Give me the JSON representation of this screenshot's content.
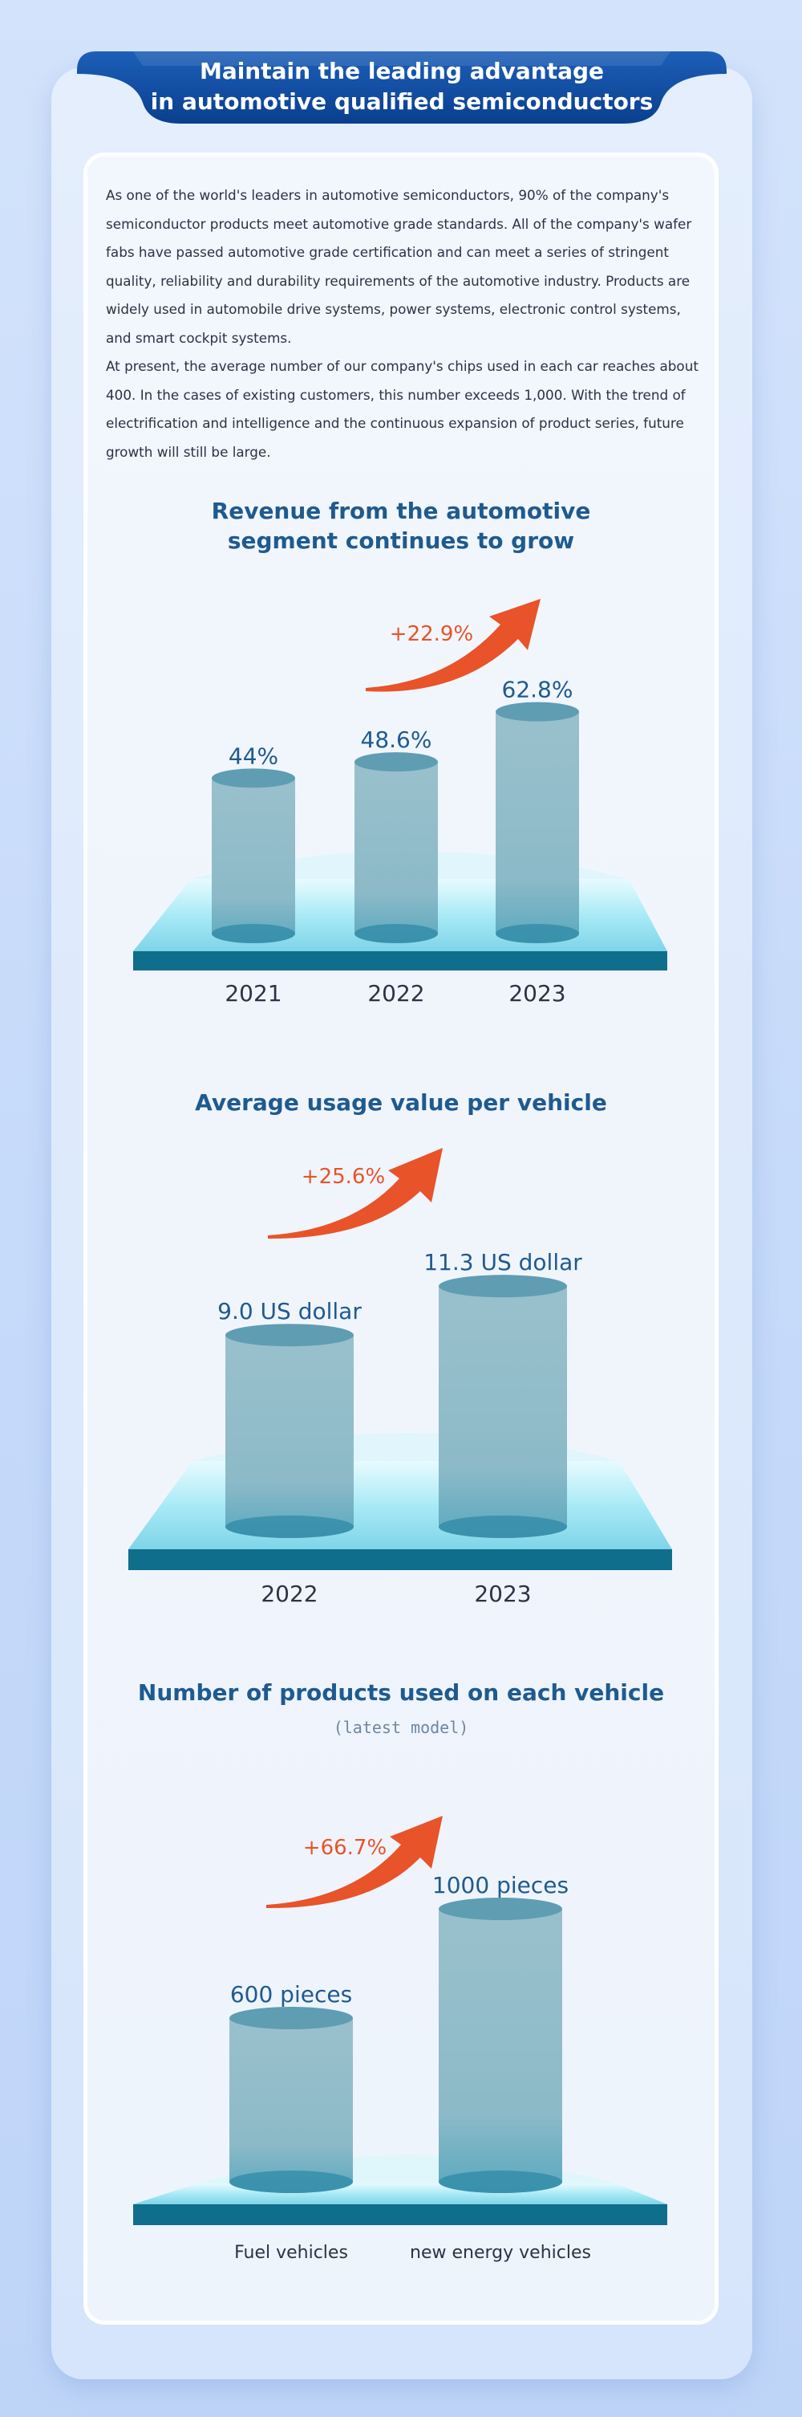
{
  "header": {
    "title_line1": "Maintain the leading advantage",
    "title_line2": "in automotive qualified semiconductors"
  },
  "intro": {
    "paragraph1": "As one of the world's leaders in automotive semiconductors, 90% of the company's semiconductor products meet automotive grade standards. All of the company's wafer fabs have passed automotive grade certification and can meet a series of stringent quality, reliability and durability requirements of the automotive industry. Products are widely used in automobile drive systems, power systems, electronic control systems, and smart cockpit systems.",
    "paragraph2": "At present, the average number of our company's chips used in each car reaches about 400. In the cases of existing customers, this number exceeds 1,000. With the trend of electrification and intelligence and the continuous expansion of product series, future growth will still be large."
  },
  "colors": {
    "bar": "#8fbcc9",
    "bar_top": "#5f9db3",
    "platform_base": "#0f6e8c",
    "growth_arrow": "#e8532a",
    "title_blue": "#1f5a8f"
  },
  "chart_data": [
    {
      "type": "bar",
      "title_line1": "Revenue from the automotive",
      "title_line2": "segment continues to grow",
      "categories": [
        "2021",
        "2022",
        "2023"
      ],
      "values": [
        44,
        48.6,
        62.8
      ],
      "value_labels": [
        "44%",
        "48.6%",
        "62.8%"
      ],
      "growth_label": "+22.9%"
    },
    {
      "type": "bar",
      "title_line1": "Average usage value per vehicle",
      "categories": [
        "2022",
        "2023"
      ],
      "values": [
        9.0,
        11.3
      ],
      "value_labels": [
        "9.0 US dollar",
        "11.3 US dollar"
      ],
      "growth_label": "+25.6%"
    },
    {
      "type": "bar",
      "title_line1": "Number of products used on each vehicle",
      "subtitle": "(latest model)",
      "categories": [
        "Fuel  vehicles",
        "new energy vehicles"
      ],
      "values": [
        600,
        1000
      ],
      "value_labels": [
        "600 pieces",
        "1000 pieces"
      ],
      "growth_label": "+66.7%"
    }
  ]
}
